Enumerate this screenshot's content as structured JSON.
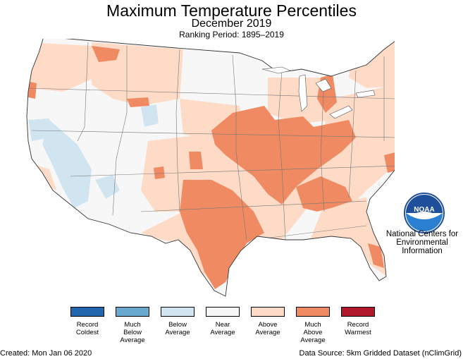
{
  "title": "Maximum Temperature Percentiles",
  "subtitle": "December 2019",
  "ranking_period": "Ranking Period: 1895–2019",
  "ncei": {
    "line1": "National Centers for",
    "line2": "Environmental",
    "line3": "Information"
  },
  "logo_text": "NOAA",
  "legend": [
    {
      "label": "Record\nColdest",
      "color": "#2166ac"
    },
    {
      "label": "Much\nBelow\nAverage",
      "color": "#67a9cf"
    },
    {
      "label": "Below\nAverage",
      "color": "#d1e5f0"
    },
    {
      "label": "Near\nAverage",
      "color": "#f7f7f7"
    },
    {
      "label": "Above\nAverage",
      "color": "#fddbc7"
    },
    {
      "label": "Much\nAbove\nAverage",
      "color": "#ef8a62"
    },
    {
      "label": "Record\nWarmest",
      "color": "#b2182b"
    }
  ],
  "created": "Created: Mon Jan 06 2020",
  "source": "Data Source: 5km Gridded Dataset (nClimGrid)"
}
